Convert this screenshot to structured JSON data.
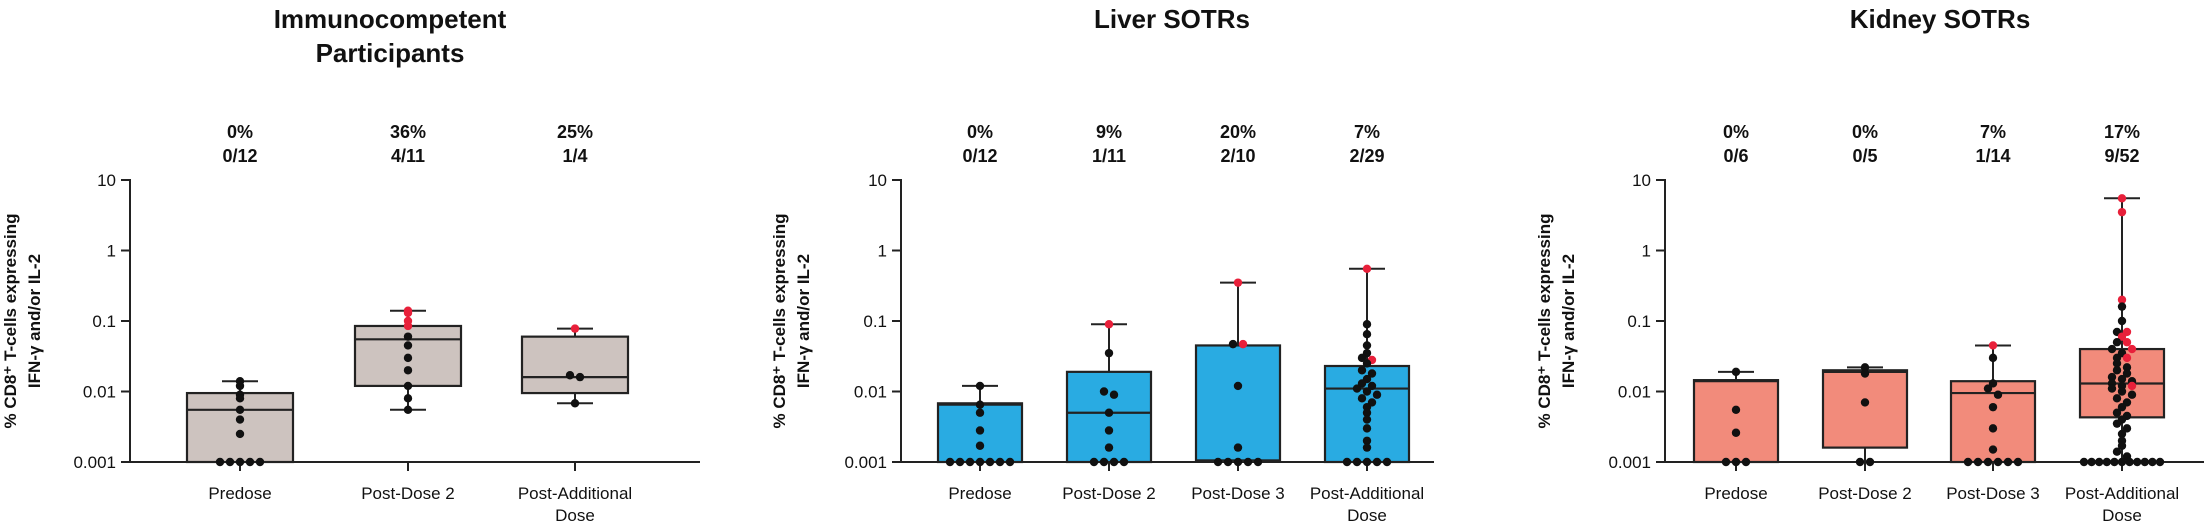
{
  "chart_data": [
    {
      "type": "box",
      "title_lines": [
        "Immunocompetent",
        "Participants"
      ],
      "ylabel_lines": [
        "% CD8⁺ T-cells expressing",
        "IFN-γ and/or IL-2"
      ],
      "yscale": "log",
      "ylim": [
        0.001,
        10
      ],
      "yticks": [
        "10",
        "1",
        "0.1",
        "0.01",
        "0.001"
      ],
      "fill_color": "#cdc3bf",
      "categories": [
        {
          "label_lines": [
            "Predose"
          ],
          "pct": "0%",
          "frac": "0/12",
          "box": {
            "q1": 0.001,
            "median": 0.0055,
            "q3": 0.0095,
            "whisker_low": 0.001,
            "whisker_high": 0.014
          },
          "points_black": [
            0.014,
            0.012,
            0.009,
            0.008,
            0.0055,
            0.004,
            0.0025,
            0.001,
            0.001,
            0.001,
            0.001,
            0.001
          ],
          "points_red": []
        },
        {
          "label_lines": [
            "Post-Dose 2"
          ],
          "pct": "36%",
          "frac": "4/11",
          "box": {
            "q1": 0.012,
            "median": 0.055,
            "q3": 0.085,
            "whisker_low": 0.0055,
            "whisker_high": 0.14
          },
          "points_black": [
            0.06,
            0.045,
            0.03,
            0.02,
            0.012,
            0.008,
            0.0055
          ],
          "points_red": [
            0.14,
            0.13,
            0.1,
            0.085
          ]
        },
        {
          "label_lines": [
            "Post-Additional",
            "Dose"
          ],
          "pct": "25%",
          "frac": "1/4",
          "box": {
            "q1": 0.0095,
            "median": 0.016,
            "q3": 0.06,
            "whisker_low": 0.0068,
            "whisker_high": 0.078
          },
          "points_black": [
            0.017,
            0.016,
            0.0068
          ],
          "points_red": [
            0.078
          ]
        }
      ]
    },
    {
      "type": "box",
      "title_lines": [
        "Liver SOTRs"
      ],
      "ylabel_lines": [
        "% CD8⁺ T-cells expressing",
        "IFN-γ and/or IL-2"
      ],
      "yscale": "log",
      "ylim": [
        0.001,
        10
      ],
      "yticks": [
        "10",
        "1",
        "0.1",
        "0.01",
        "0.001"
      ],
      "fill_color": "#29abe2",
      "categories": [
        {
          "label_lines": [
            "Predose"
          ],
          "pct": "0%",
          "frac": "0/12",
          "box": {
            "q1": 0.001,
            "median": 0.0065,
            "q3": 0.0068,
            "whisker_low": 0.001,
            "whisker_high": 0.012
          },
          "points_black": [
            0.012,
            0.0065,
            0.005,
            0.0028,
            0.0017,
            0.001,
            0.001,
            0.001,
            0.001,
            0.001,
            0.001,
            0.001
          ],
          "points_red": []
        },
        {
          "label_lines": [
            "Post-Dose 2"
          ],
          "pct": "9%",
          "frac": "1/11",
          "box": {
            "q1": 0.001,
            "median": 0.005,
            "q3": 0.019,
            "whisker_low": 0.001,
            "whisker_high": 0.09
          },
          "points_black": [
            0.035,
            0.01,
            0.009,
            0.005,
            0.0028,
            0.0016,
            0.001,
            0.001,
            0.001,
            0.001
          ],
          "points_red": [
            0.09
          ]
        },
        {
          "label_lines": [
            "Post-Dose 3"
          ],
          "pct": "20%",
          "frac": "2/10",
          "box": {
            "q1": 0.00105,
            "median": 0.00105,
            "q3": 0.045,
            "whisker_low": 0.001,
            "whisker_high": 0.35
          },
          "points_black": [
            0.047,
            0.012,
            0.0016,
            0.001,
            0.001,
            0.001,
            0.001,
            0.001
          ],
          "points_red": [
            0.35,
            0.047
          ]
        },
        {
          "label_lines": [
            "Post-Additional",
            "Dose"
          ],
          "pct": "7%",
          "frac": "2/29",
          "box": {
            "q1": 0.001,
            "median": 0.011,
            "q3": 0.023,
            "whisker_low": 0.001,
            "whisker_high": 0.55
          },
          "points_black": [
            0.09,
            0.065,
            0.045,
            0.035,
            0.03,
            0.025,
            0.02,
            0.018,
            0.015,
            0.013,
            0.012,
            0.011,
            0.01,
            0.009,
            0.008,
            0.007,
            0.006,
            0.005,
            0.004,
            0.003,
            0.002,
            0.0016,
            0.001,
            0.001,
            0.001,
            0.001,
            0.001
          ],
          "points_red": [
            0.55,
            0.028
          ]
        }
      ]
    },
    {
      "type": "box",
      "title_lines": [
        "Kidney SOTRs"
      ],
      "ylabel_lines": [
        "% CD8⁺ T-cells expressing",
        "IFN-γ and/or IL-2"
      ],
      "yscale": "log",
      "ylim": [
        0.001,
        10
      ],
      "yticks": [
        "10",
        "1",
        "0.1",
        "0.01",
        "0.001"
      ],
      "fill_color": "#f28b7b",
      "categories": [
        {
          "label_lines": [
            "Predose"
          ],
          "pct": "0%",
          "frac": "0/6",
          "box": {
            "q1": 0.001,
            "median": 0.014,
            "q3": 0.0145,
            "whisker_low": 0.001,
            "whisker_high": 0.019
          },
          "points_black": [
            0.019,
            0.0055,
            0.0026,
            0.001,
            0.001,
            0.001
          ],
          "points_red": []
        },
        {
          "label_lines": [
            "Post-Dose 2"
          ],
          "pct": "0%",
          "frac": "0/5",
          "box": {
            "q1": 0.0016,
            "median": 0.019,
            "q3": 0.02,
            "whisker_low": 0.001,
            "whisker_high": 0.022
          },
          "points_black": [
            0.022,
            0.018,
            0.007,
            0.001,
            0.001
          ],
          "points_red": []
        },
        {
          "label_lines": [
            "Post-Dose 3"
          ],
          "pct": "7%",
          "frac": "1/14",
          "box": {
            "q1": 0.001,
            "median": 0.0095,
            "q3": 0.014,
            "whisker_low": 0.001,
            "whisker_high": 0.045
          },
          "points_black": [
            0.03,
            0.013,
            0.011,
            0.009,
            0.006,
            0.003,
            0.0015,
            0.001,
            0.001,
            0.001,
            0.001,
            0.001,
            0.001
          ],
          "points_red": [
            0.045
          ]
        },
        {
          "label_lines": [
            "Post-Additional",
            "Dose"
          ],
          "pct": "17%",
          "frac": "9/52",
          "box": {
            "q1": 0.0043,
            "median": 0.013,
            "q3": 0.04,
            "whisker_low": 0.001,
            "whisker_high": 5.5
          },
          "points_black": [
            0.16,
            0.1,
            0.07,
            0.05,
            0.04,
            0.035,
            0.03,
            0.025,
            0.022,
            0.02,
            0.018,
            0.016,
            0.015,
            0.014,
            0.013,
            0.012,
            0.011,
            0.01,
            0.009,
            0.008,
            0.007,
            0.006,
            0.005,
            0.0045,
            0.004,
            0.0035,
            0.003,
            0.0025,
            0.002,
            0.0017,
            0.0014,
            0.0012,
            0.001,
            0.001,
            0.001,
            0.001,
            0.001,
            0.001,
            0.001,
            0.001,
            0.001,
            0.001,
            0.001
          ],
          "points_red": [
            5.5,
            3.5,
            0.2,
            0.07,
            0.06,
            0.05,
            0.04,
            0.03,
            0.012
          ]
        }
      ]
    }
  ]
}
